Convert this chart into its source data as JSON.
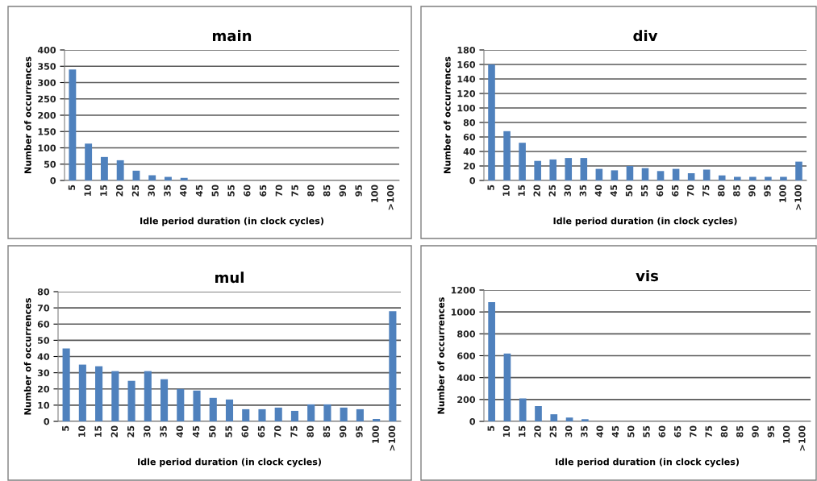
{
  "chart_data": [
    {
      "type": "bar",
      "title": "main",
      "xlabel": "Idle period duration (in clock cycles)",
      "ylabel": "Number of occurrences",
      "categories": [
        "5",
        "10",
        "15",
        "20",
        "25",
        "30",
        "35",
        "40",
        "45",
        "50",
        "55",
        "60",
        "65",
        "70",
        "75",
        "80",
        "85",
        "90",
        "95",
        "100",
        ">100"
      ],
      "color": "#4f81bd",
      "values": [
        340,
        113,
        72,
        62,
        30,
        16,
        11,
        8,
        0,
        0,
        0,
        0,
        0,
        0,
        0,
        0,
        0,
        0,
        0,
        0,
        0
      ],
      "ylim": [
        0,
        400
      ],
      "yticks": [
        0,
        50,
        100,
        150,
        200,
        250,
        300,
        350,
        400
      ],
      "grid": "y"
    },
    {
      "type": "bar",
      "title": "div",
      "xlabel": "Idle period duration (in clock cycles)",
      "ylabel": "Number of occurrences",
      "categories": [
        "5",
        "10",
        "15",
        "20",
        "25",
        "30",
        "35",
        "40",
        "45",
        "50",
        "55",
        "60",
        "65",
        "70",
        "75",
        "80",
        "85",
        "90",
        "95",
        "100",
        ">100"
      ],
      "color": "#4f81bd",
      "values": [
        160,
        68,
        52,
        27,
        29,
        31,
        31,
        16,
        14,
        20,
        17,
        13,
        16,
        10,
        15,
        7,
        5,
        5,
        5,
        5,
        26
      ],
      "ylim": [
        0,
        180
      ],
      "yticks": [
        0,
        20,
        40,
        60,
        80,
        100,
        120,
        140,
        160,
        180
      ],
      "grid": "y"
    },
    {
      "type": "bar",
      "title": "mul",
      "xlabel": "Idle period duration (in clock cycles)",
      "ylabel": "Number of occurrences",
      "categories": [
        "5",
        "10",
        "15",
        "20",
        "25",
        "30",
        "35",
        "40",
        "45",
        "50",
        "55",
        "60",
        "65",
        "70",
        "75",
        "80",
        "85",
        "90",
        "95",
        "100",
        ">100"
      ],
      "color": "#4f81bd",
      "values": [
        45,
        35,
        34,
        31,
        25,
        31,
        26,
        20,
        19,
        14.5,
        13.5,
        7.5,
        7.5,
        8.5,
        6.5,
        10.5,
        10.5,
        8.5,
        7.5,
        1.5,
        68
      ],
      "ylim": [
        0,
        80
      ],
      "yticks": [
        0,
        10,
        20,
        30,
        40,
        50,
        60,
        70,
        80
      ],
      "grid": "y"
    },
    {
      "type": "bar",
      "title": "vis",
      "xlabel": "Idle period duration (in clock cycles)",
      "ylabel": "Number of occurrences",
      "categories": [
        "5",
        "10",
        "15",
        "20",
        "25",
        "30",
        "35",
        "40",
        "45",
        "50",
        "55",
        "60",
        "65",
        "70",
        "75",
        "80",
        "85",
        "90",
        "95",
        "100",
        ">100"
      ],
      "color": "#4f81bd",
      "values": [
        1090,
        620,
        210,
        140,
        65,
        35,
        20,
        0,
        0,
        0,
        0,
        0,
        0,
        0,
        0,
        0,
        0,
        0,
        0,
        0,
        0
      ],
      "ylim": [
        0,
        1200
      ],
      "yticks": [
        0,
        200,
        400,
        600,
        800,
        1000,
        1200
      ],
      "grid": "y"
    }
  ]
}
